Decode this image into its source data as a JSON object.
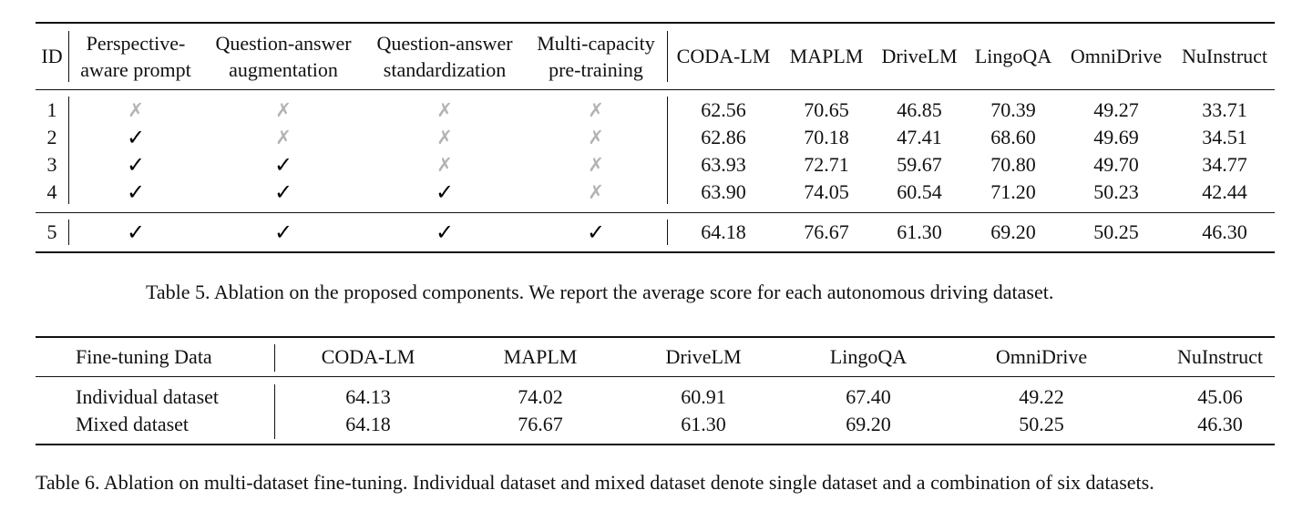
{
  "table5": {
    "headers": {
      "id": "ID",
      "perspective": [
        "Perspective-",
        "aware prompt"
      ],
      "qa_aug": [
        "Question-answer",
        "augmentation"
      ],
      "qa_std": [
        "Question-answer",
        "standardization"
      ],
      "multi_cap": [
        "Multi-capacity",
        "pre-training"
      ],
      "datasets": [
        "CODA-LM",
        "MAPLM",
        "DriveLM",
        "LingoQA",
        "OmniDrive",
        "NuInstruct"
      ]
    },
    "rows": [
      {
        "id": "1",
        "components": [
          false,
          false,
          false,
          false
        ],
        "scores": [
          "62.56",
          "70.65",
          "46.85",
          "70.39",
          "49.27",
          "33.71"
        ]
      },
      {
        "id": "2",
        "components": [
          true,
          false,
          false,
          false
        ],
        "scores": [
          "62.86",
          "70.18",
          "47.41",
          "68.60",
          "49.69",
          "34.51"
        ]
      },
      {
        "id": "3",
        "components": [
          true,
          true,
          false,
          false
        ],
        "scores": [
          "63.93",
          "72.71",
          "59.67",
          "70.80",
          "49.70",
          "34.77"
        ]
      },
      {
        "id": "4",
        "components": [
          true,
          true,
          true,
          false
        ],
        "scores": [
          "63.90",
          "74.05",
          "60.54",
          "71.20",
          "50.23",
          "42.44"
        ]
      },
      {
        "id": "5",
        "components": [
          true,
          true,
          true,
          true
        ],
        "scores": [
          "64.18",
          "76.67",
          "61.30",
          "69.20",
          "50.25",
          "46.30"
        ]
      }
    ],
    "caption": "Table 5. Ablation on the proposed components. We report the average score for each autonomous driving dataset."
  },
  "table6": {
    "headers": {
      "data": "Fine-tuning Data",
      "datasets": [
        "CODA-LM",
        "MAPLM",
        "DriveLM",
        "LingoQA",
        "OmniDrive",
        "NuInstruct"
      ]
    },
    "rows": [
      {
        "label": "Individual dataset",
        "scores": [
          "64.13",
          "74.02",
          "60.91",
          "67.40",
          "49.22",
          "45.06"
        ]
      },
      {
        "label": "Mixed dataset",
        "scores": [
          "64.18",
          "76.67",
          "61.30",
          "69.20",
          "50.25",
          "46.30"
        ]
      }
    ],
    "caption": "Table 6. Ablation on multi-dataset fine-tuning. Individual dataset and mixed dataset denote single dataset and a combination of six datasets."
  },
  "marks": {
    "check": "✓",
    "cross": "✗"
  }
}
